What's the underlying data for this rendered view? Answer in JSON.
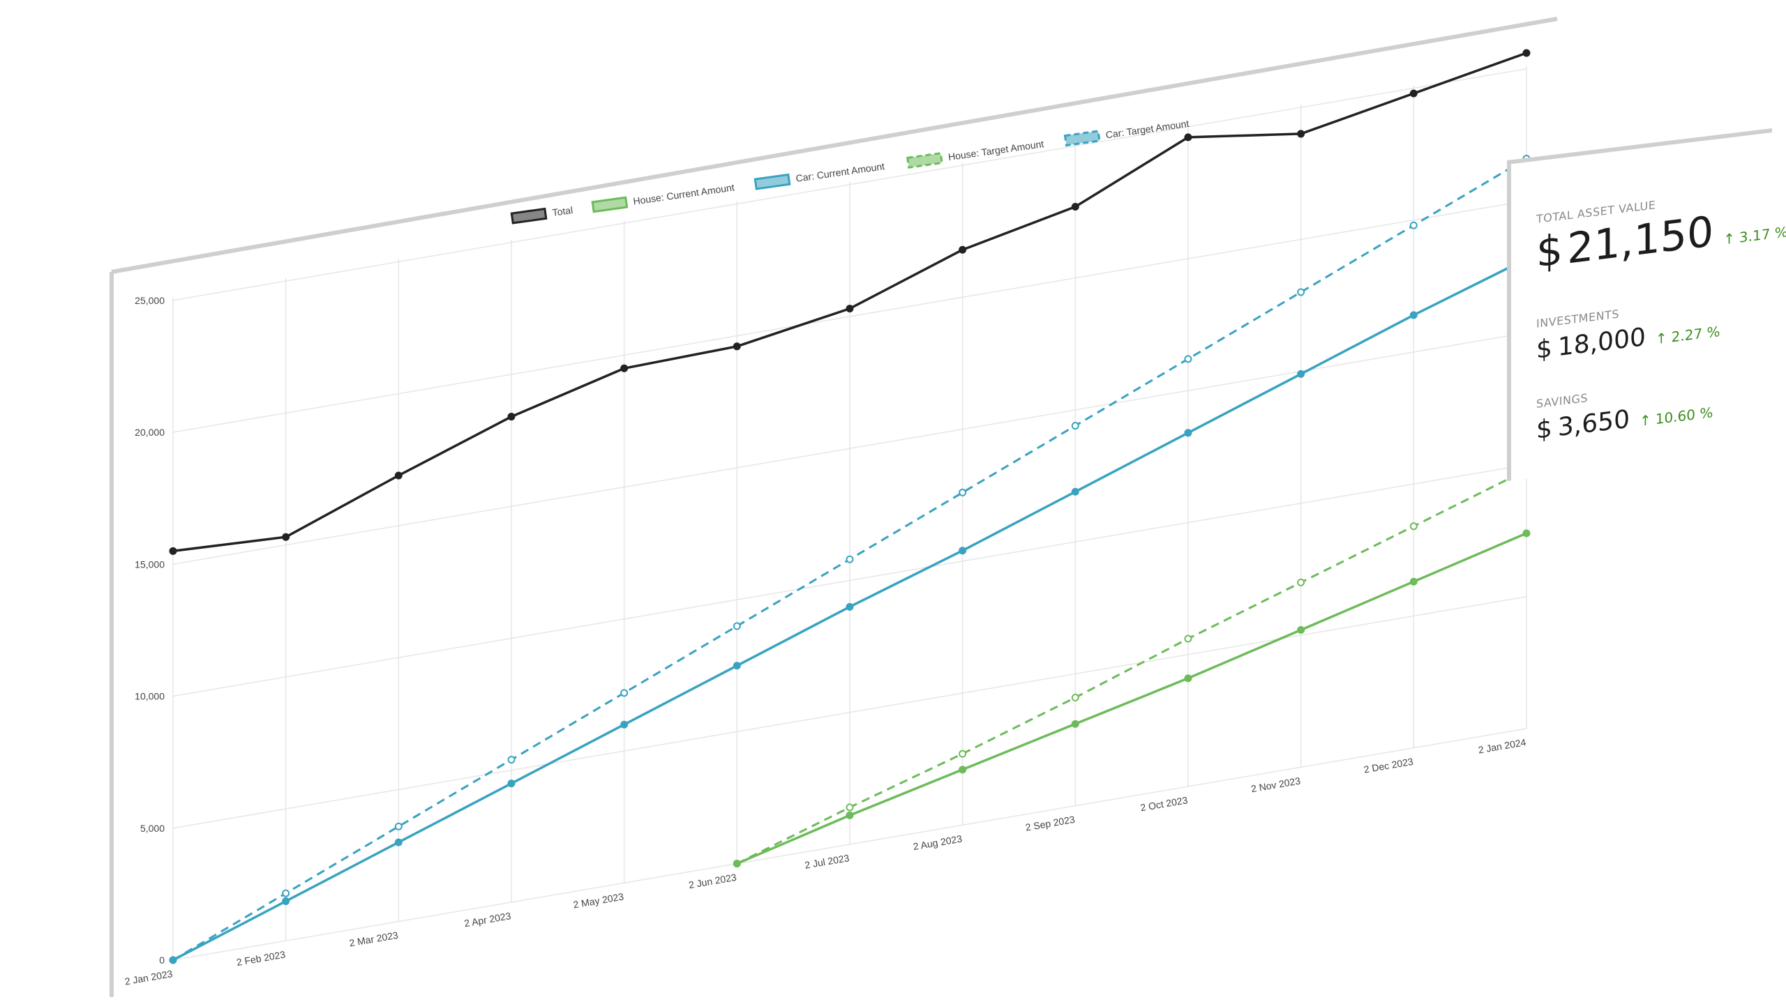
{
  "chart_data": {
    "type": "line",
    "categories": [
      "2 Jan 2023",
      "2 Feb 2023",
      "2 Mar 2023",
      "2 Apr 2023",
      "2 May 2023",
      "2 Jun 2023",
      "2 Jul 2023",
      "2 Aug 2023",
      "2 Sep 2023",
      "2 Oct 2023",
      "2 Nov 2023",
      "2 Dec 2023",
      "2 Jan 2024"
    ],
    "y_ticks": [
      "0",
      "5,000",
      "10,000",
      "15,000",
      "20,000",
      "25,000"
    ],
    "ylim": [
      0,
      25000
    ],
    "grid": true,
    "legend_position": "top",
    "series": [
      {
        "name": "Total",
        "color": "#222222",
        "dashed": false,
        "values": [
          15500,
          15300,
          16900,
          18400,
          19500,
          19600,
          20300,
          21800,
          22700,
          24600,
          24000,
          24800,
          25600
        ]
      },
      {
        "name": "House: Current Amount",
        "color": "#6dbb5a",
        "dashed": false,
        "values": [
          null,
          null,
          null,
          null,
          null,
          0,
          1100,
          2100,
          3100,
          4100,
          5200,
          6300,
          7400
        ]
      },
      {
        "name": "Car: Current Amount",
        "color": "#38a3c0",
        "dashed": false,
        "values": [
          0,
          1500,
          3000,
          4500,
          6000,
          7500,
          9000,
          10400,
          11900,
          13400,
          14900,
          16400,
          17800
        ]
      },
      {
        "name": "House: Target Amount",
        "color": "#6dbb5a",
        "dashed": true,
        "values": [
          null,
          null,
          null,
          null,
          null,
          0,
          1400,
          2700,
          4100,
          5600,
          7000,
          8400,
          9800
        ]
      },
      {
        "name": "Car: Target Amount",
        "color": "#38a3c0",
        "dashed": true,
        "values": [
          0,
          1800,
          3600,
          5400,
          7200,
          9000,
          10800,
          12600,
          14400,
          16200,
          18000,
          19800,
          21600
        ]
      }
    ]
  },
  "stats": {
    "total": {
      "label": "TOTAL ASSET VALUE",
      "currency": "$",
      "value": "21,150",
      "change": "3.17 %",
      "arrow_icon": "arrow-up-icon"
    },
    "investments": {
      "label": "INVESTMENTS",
      "currency": "$",
      "value": "18,000",
      "change": "2.27 %",
      "arrow_icon": "arrow-up-icon"
    },
    "savings": {
      "label": "SAVINGS",
      "currency": "$",
      "value": "3,650",
      "change": "10.60 %",
      "arrow_icon": "arrow-up-icon"
    }
  },
  "colors": {
    "positive": "#3d8f1f",
    "frame": "#cfcfcf",
    "grid": "#e6e6e6"
  }
}
